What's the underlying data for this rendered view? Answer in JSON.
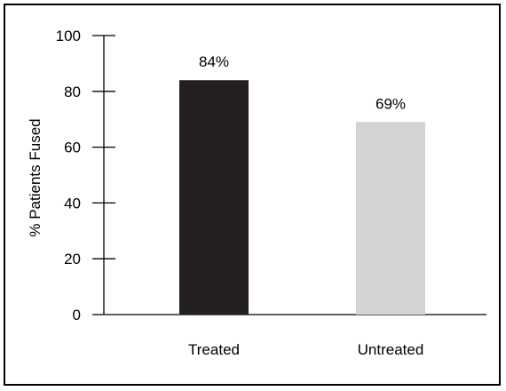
{
  "chart_data": {
    "type": "bar",
    "categories": [
      "Treated",
      "Untreated"
    ],
    "values": [
      84,
      69
    ],
    "data_labels": [
      "84%",
      "69%"
    ],
    "bar_colors": [
      "#231f20",
      "#d1d3d4"
    ],
    "title": "",
    "xlabel": "",
    "ylabel": "% Patients Fused",
    "ylim": [
      0,
      100
    ],
    "yticks": [
      0,
      20,
      40,
      60,
      80,
      100
    ],
    "ytick_labels": [
      "0",
      "20",
      "40",
      "60",
      "80",
      "100"
    ],
    "grid": false,
    "legend": "none"
  }
}
